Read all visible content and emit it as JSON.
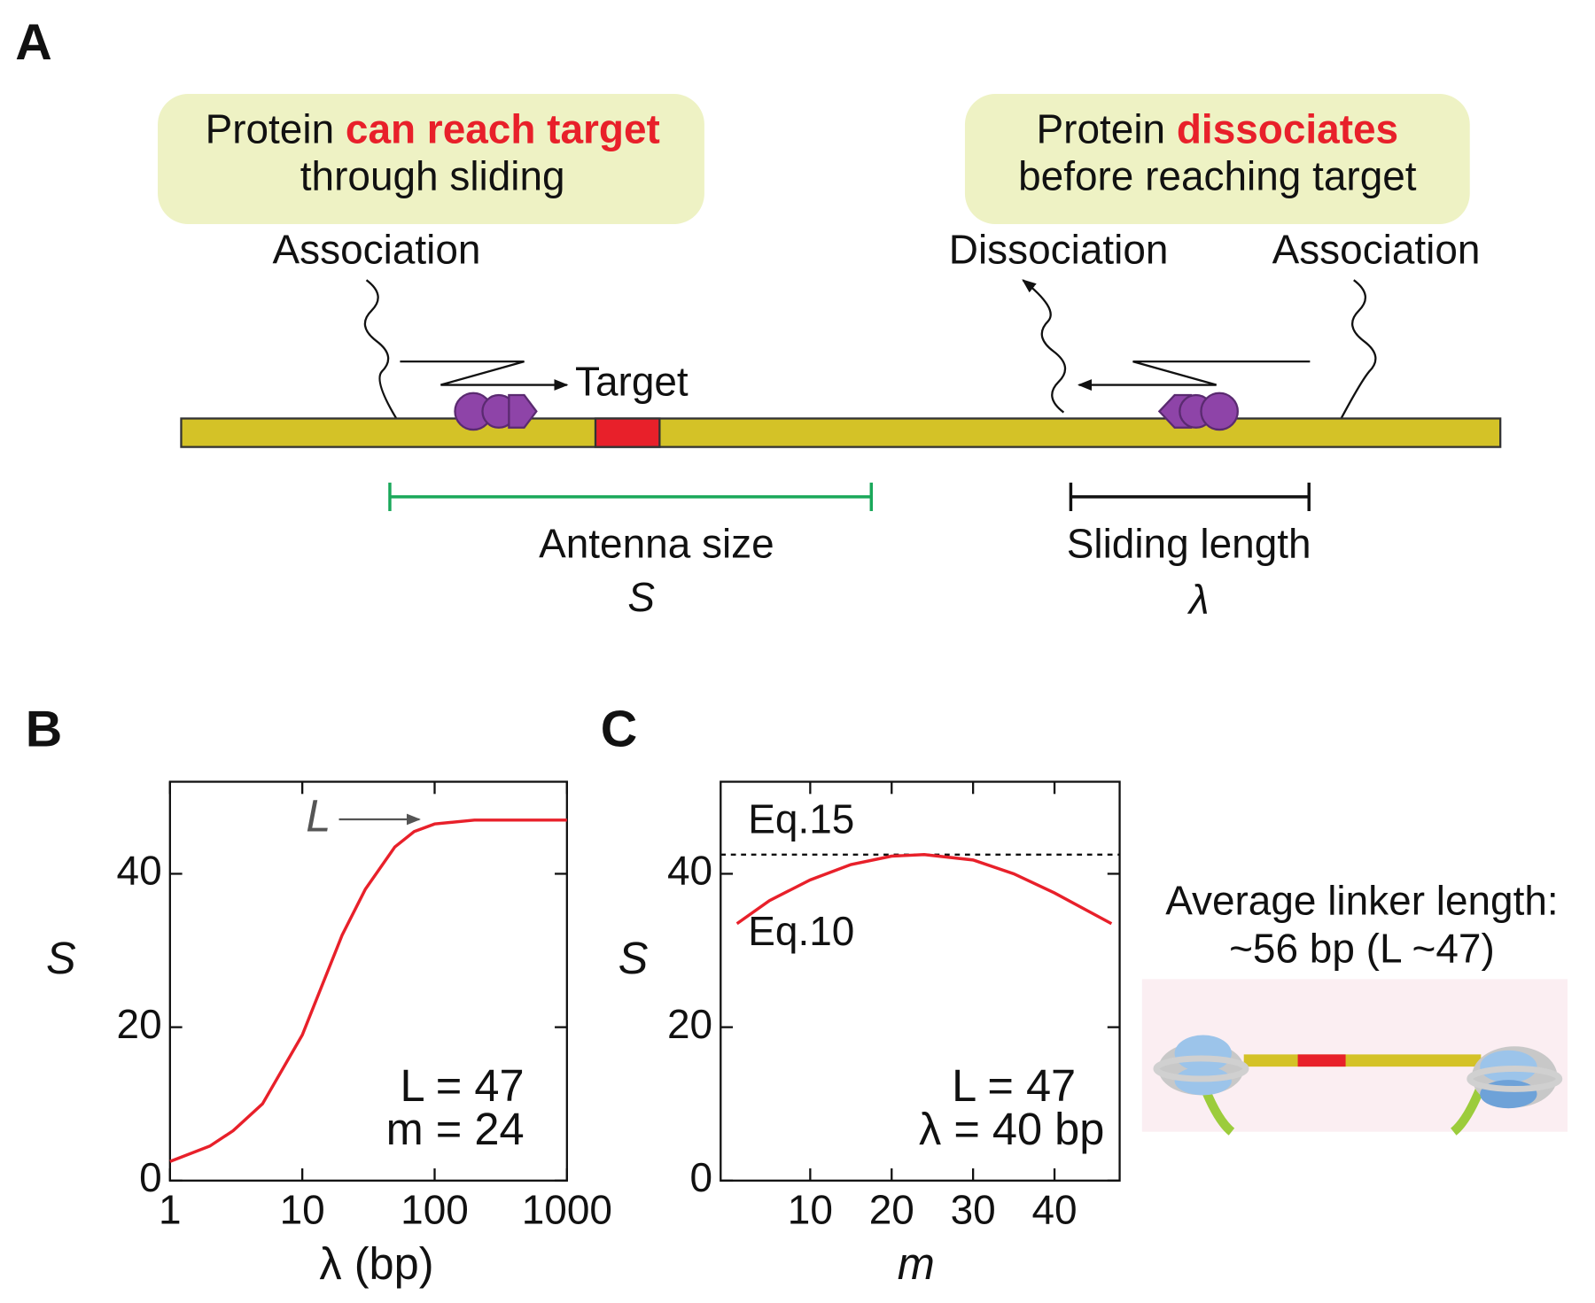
{
  "panel_a": {
    "panel_label": "A",
    "callout_left": {
      "prefix": "Protein",
      "highlight": "can reach target",
      "line2": "through sliding"
    },
    "callout_right": {
      "prefix": "Protein",
      "highlight": "dissociates",
      "line2": "before reaching target"
    },
    "association_left": "Association",
    "dissociation": "Dissociation",
    "association_right": "Association",
    "target": "Target",
    "antenna_size": "Antenna size",
    "antenna_symbol": "S",
    "sliding_length": "Sliding length",
    "sliding_symbol": "λ"
  },
  "side_note": {
    "line1": "Average linker length:",
    "line2": "~56 bp (L ~47)"
  },
  "chart_data": [
    {
      "type": "line",
      "panel_label": "B",
      "x_label": "λ (bp)",
      "y_label": "S",
      "xscale": "log",
      "xlim": [
        1,
        1000
      ],
      "xticks": [
        1,
        10,
        100,
        1000
      ],
      "ylim": [
        0,
        52
      ],
      "yticks": [
        0,
        20,
        40
      ],
      "x": [
        1,
        2,
        3,
        5,
        10,
        20,
        30,
        50,
        70,
        100,
        200,
        1000
      ],
      "series": [
        {
          "color": "#e8202a",
          "values": [
            2.5,
            4.5,
            6.5,
            10,
            19,
            32,
            38,
            43.5,
            45.5,
            46.5,
            47,
            47
          ]
        }
      ],
      "arrow_label": "L",
      "annotations": [
        "L = 47",
        "m = 24"
      ]
    },
    {
      "type": "line",
      "panel_label": "C",
      "x_label": "m",
      "y_label": "S",
      "xscale": "linear",
      "xlim": [
        -1,
        48
      ],
      "xticks": [
        10,
        20,
        30,
        40
      ],
      "ylim": [
        0,
        52
      ],
      "yticks": [
        0,
        20,
        40
      ],
      "x": [
        1,
        5,
        10,
        15,
        20,
        24,
        30,
        35,
        40,
        47
      ],
      "series": [
        {
          "name": "Eq.10",
          "color": "#e8202a",
          "values": [
            33.5,
            36.5,
            39.2,
            41.2,
            42.3,
            42.5,
            41.8,
            40,
            37.5,
            33.5
          ]
        }
      ],
      "reference_line": {
        "value": 42.5,
        "label": "Eq.15"
      },
      "annotations": [
        "L = 47",
        "λ = 40 bp"
      ]
    }
  ]
}
